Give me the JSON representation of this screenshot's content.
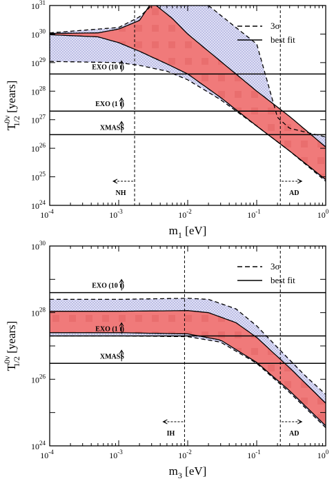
{
  "chart_data": [
    {
      "type": "area",
      "x_scale": "log",
      "y_scale": "log",
      "xlim": [
        0.0001,
        1
      ],
      "ylim": [
        1e+24,
        1e+31
      ],
      "xlabel": {
        "main": "m",
        "sub": "1",
        "units": " [eV]"
      },
      "ylabel": {
        "main": "T",
        "sup": "0ν",
        "sub": "1/2",
        "units": "  [years]"
      },
      "x_tick_exponents": [
        "-4",
        "-3",
        "-2",
        "-1",
        "0"
      ],
      "y_tick_exponents": [
        "24",
        "25",
        "26",
        "27",
        "28",
        "29",
        "30",
        "31"
      ],
      "legend": {
        "position": "top-right",
        "entries": [
          {
            "label": "3σ",
            "style": "dashed"
          },
          {
            "label": "best fit",
            "style": "solid"
          }
        ]
      },
      "sigma3_band": {
        "upper": [
          [
            0.0001,
            1.1e+30
          ],
          [
            0.001,
            1.7e+30
          ],
          [
            0.002,
            4e+30
          ],
          [
            0.003,
            1e+31
          ],
          [
            0.006,
            5e+31
          ]
        ],
        "upper_right": [
          [
            0.02,
            1e+31
          ],
          [
            0.05,
            1.7e+30
          ],
          [
            0.1,
            4.5e+29
          ],
          [
            0.2,
            1.2e+27
          ],
          [
            0.3,
            5e+26
          ],
          [
            1,
            2.5e+26
          ]
        ],
        "lower": [
          [
            0.0001,
            1.1e+29
          ],
          [
            0.001,
            1e+29
          ],
          [
            0.002,
            8e+28
          ],
          [
            0.005,
            5e+28
          ],
          [
            0.01,
            2.5e+28
          ],
          [
            0.03,
            5e+27
          ],
          [
            0.1,
            6e+26
          ],
          [
            0.3,
            8e+25
          ],
          [
            1,
            7e+24
          ]
        ]
      },
      "best_fit_band": {
        "upper_left": [
          [
            0.0001,
            1.05e+30
          ],
          [
            0.0005,
            1.1e+30
          ],
          [
            0.001,
            1.5e+30
          ],
          [
            0.002,
            3e+30
          ],
          [
            0.0028,
            1e+31
          ]
        ],
        "upper_right": [
          [
            0.0035,
            1e+31
          ],
          [
            0.006,
            3.5e+30
          ],
          [
            0.01,
            1e+30
          ],
          [
            0.02,
            2.5e+29
          ],
          [
            0.05,
            4e+28
          ],
          [
            0.1,
            1e+28
          ],
          [
            0.3,
            1.3e+27
          ],
          [
            1,
            1.1e+26
          ]
        ],
        "lower": [
          [
            0.0001,
            9.5e+29
          ],
          [
            0.0005,
            8e+29
          ],
          [
            0.001,
            5e+29
          ],
          [
            0.002,
            2.5e+29
          ],
          [
            0.005,
            9e+28
          ],
          [
            0.01,
            4e+28
          ],
          [
            0.03,
            6e+27
          ],
          [
            0.1,
            6e+26
          ],
          [
            0.3,
            8e+25
          ],
          [
            1,
            8e+24
          ]
        ]
      },
      "experiments": [
        {
          "label": "EXO (10 t)",
          "value": 4e+28
        },
        {
          "label": "EXO (1 t)",
          "value": 2e+27
        },
        {
          "label": "XMASS",
          "value": 3e+26
        }
      ],
      "vlines": [
        {
          "x": 0.0017,
          "label": "NH",
          "arrow": "left"
        },
        {
          "x": 0.22,
          "label": "AD",
          "arrow": "right"
        }
      ],
      "colors": {
        "best_fit_fill": "#f07a7a",
        "sigma3_fill": "#dfe0f5",
        "sigma3_dots": "#3a3aa8"
      }
    },
    {
      "type": "area",
      "x_scale": "log",
      "y_scale": "log",
      "xlim": [
        0.0001,
        1
      ],
      "ylim": [
        1e+24,
        1e+30
      ],
      "xlabel": {
        "main": "m",
        "sub": "3",
        "units": " [eV]"
      },
      "ylabel": {
        "main": "T",
        "sup": "0ν",
        "sub": "1/2",
        "units": "  [years]"
      },
      "x_tick_exponents": [
        "-4",
        "-3",
        "-2",
        "-1",
        "0"
      ],
      "y_tick_exponents": [
        "24",
        "26",
        "28",
        "30"
      ],
      "legend": {
        "position": "top-right",
        "entries": [
          {
            "label": "3σ",
            "style": "dashed"
          },
          {
            "label": "best fit",
            "style": "solid"
          }
        ]
      },
      "sigma3_band": {
        "upper": [
          [
            0.0001,
            2.5e+28
          ],
          [
            0.001,
            2.5e+28
          ],
          [
            0.01,
            2.7e+28
          ],
          [
            0.02,
            2.5e+28
          ],
          [
            0.05,
            1.3e+28
          ],
          [
            0.1,
            4e+27
          ],
          [
            0.2,
            9e+26
          ],
          [
            0.5,
            1.3e+26
          ],
          [
            1,
            3.5e+25
          ]
        ],
        "lower": [
          [
            0.0001,
            2e+27
          ],
          [
            0.001,
            2e+27
          ],
          [
            0.01,
            1.9e+27
          ],
          [
            0.03,
            1.3e+27
          ],
          [
            0.1,
            3e+26
          ],
          [
            0.3,
            4e+25
          ],
          [
            1,
            3.5e+24
          ]
        ]
      },
      "best_fit_band": {
        "upper": [
          [
            0.0001,
            1.1e+28
          ],
          [
            0.001,
            1.1e+28
          ],
          [
            0.01,
            1.15e+28
          ],
          [
            0.02,
            1e+28
          ],
          [
            0.05,
            5e+27
          ],
          [
            0.1,
            1.8e+27
          ],
          [
            0.3,
            2.2e+26
          ],
          [
            1,
            1.9e+25
          ]
        ],
        "lower": [
          [
            0.0001,
            2.5e+27
          ],
          [
            0.001,
            2.5e+27
          ],
          [
            0.01,
            2.3e+27
          ],
          [
            0.03,
            1.5e+27
          ],
          [
            0.1,
            3.2e+26
          ],
          [
            0.3,
            4.5e+25
          ],
          [
            1,
            4e+24
          ]
        ]
      },
      "experiments": [
        {
          "label": "EXO (10 t)",
          "value": 4e+28
        },
        {
          "label": "EXO (1 t)",
          "value": 2e+27
        },
        {
          "label": "XMASS",
          "value": 3e+26
        }
      ],
      "vlines": [
        {
          "x": 0.009,
          "label": "IH",
          "arrow": "left"
        },
        {
          "x": 0.22,
          "label": "AD",
          "arrow": "right"
        }
      ],
      "colors": {
        "best_fit_fill": "#f07a7a",
        "sigma3_fill": "#dfe0f5",
        "sigma3_dots": "#3a3aa8"
      }
    }
  ]
}
